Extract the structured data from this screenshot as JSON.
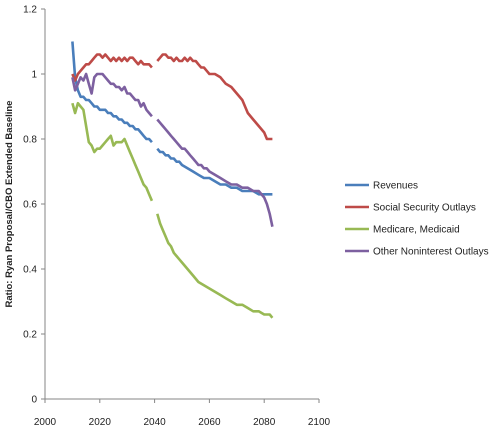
{
  "chart_data": {
    "type": "line",
    "title": "",
    "xlabel": "",
    "ylabel": "Ratio: Ryan Proposal/CBO Extended Baseline",
    "xlim": [
      2000,
      2100
    ],
    "ylim": [
      0,
      1.2
    ],
    "xticks": [
      2000,
      2020,
      2040,
      2060,
      2080,
      2100
    ],
    "yticks": [
      0,
      0.2,
      0.4,
      0.6,
      0.8,
      1,
      1.2
    ],
    "ytick_labels": [
      "0",
      "0.2",
      "0.4",
      "0.6",
      "0.8",
      "1",
      "1.2"
    ],
    "grid": false,
    "legend_position": "right",
    "series": [
      {
        "name": "Revenues",
        "color": "#4a7ebb",
        "segments": [
          [
            [
              2010,
              1.1
            ],
            [
              2011,
              0.99
            ],
            [
              2012,
              0.95
            ],
            [
              2013,
              0.93
            ],
            [
              2014,
              0.93
            ],
            [
              2015,
              0.92
            ],
            [
              2016,
              0.92
            ],
            [
              2017,
              0.91
            ],
            [
              2018,
              0.9
            ],
            [
              2019,
              0.9
            ],
            [
              2020,
              0.89
            ],
            [
              2021,
              0.89
            ],
            [
              2022,
              0.89
            ],
            [
              2023,
              0.88
            ],
            [
              2024,
              0.88
            ],
            [
              2025,
              0.87
            ],
            [
              2026,
              0.87
            ],
            [
              2027,
              0.86
            ],
            [
              2028,
              0.86
            ],
            [
              2029,
              0.85
            ],
            [
              2030,
              0.85
            ],
            [
              2031,
              0.84
            ],
            [
              2032,
              0.84
            ],
            [
              2033,
              0.83
            ],
            [
              2034,
              0.83
            ],
            [
              2035,
              0.82
            ],
            [
              2036,
              0.81
            ],
            [
              2037,
              0.8
            ],
            [
              2038,
              0.8
            ],
            [
              2039,
              0.79
            ]
          ],
          [
            [
              2041,
              0.77
            ],
            [
              2042,
              0.76
            ],
            [
              2043,
              0.76
            ],
            [
              2044,
              0.75
            ],
            [
              2045,
              0.75
            ],
            [
              2046,
              0.74
            ],
            [
              2047,
              0.74
            ],
            [
              2048,
              0.73
            ],
            [
              2049,
              0.73
            ],
            [
              2050,
              0.72
            ],
            [
              2052,
              0.71
            ],
            [
              2054,
              0.7
            ],
            [
              2056,
              0.69
            ],
            [
              2058,
              0.68
            ],
            [
              2060,
              0.68
            ],
            [
              2062,
              0.67
            ],
            [
              2064,
              0.66
            ],
            [
              2066,
              0.66
            ],
            [
              2068,
              0.65
            ],
            [
              2070,
              0.65
            ],
            [
              2072,
              0.64
            ],
            [
              2074,
              0.64
            ],
            [
              2076,
              0.64
            ],
            [
              2078,
              0.63
            ],
            [
              2080,
              0.63
            ],
            [
              2082,
              0.63
            ],
            [
              2083,
              0.63
            ]
          ]
        ]
      },
      {
        "name": "Social Security Outlays",
        "color": "#be4b48",
        "segments": [
          [
            [
              2010,
              1.0
            ],
            [
              2011,
              0.98
            ],
            [
              2012,
              1.0
            ],
            [
              2013,
              1.01
            ],
            [
              2014,
              1.02
            ],
            [
              2015,
              1.03
            ],
            [
              2016,
              1.03
            ],
            [
              2017,
              1.04
            ],
            [
              2018,
              1.05
            ],
            [
              2019,
              1.06
            ],
            [
              2020,
              1.06
            ],
            [
              2021,
              1.05
            ],
            [
              2022,
              1.06
            ],
            [
              2023,
              1.05
            ],
            [
              2024,
              1.04
            ],
            [
              2025,
              1.05
            ],
            [
              2026,
              1.04
            ],
            [
              2027,
              1.05
            ],
            [
              2028,
              1.04
            ],
            [
              2029,
              1.05
            ],
            [
              2030,
              1.04
            ],
            [
              2031,
              1.05
            ],
            [
              2032,
              1.05
            ],
            [
              2033,
              1.04
            ],
            [
              2034,
              1.03
            ],
            [
              2035,
              1.04
            ],
            [
              2036,
              1.03
            ],
            [
              2037,
              1.03
            ],
            [
              2038,
              1.03
            ],
            [
              2039,
              1.02
            ]
          ],
          [
            [
              2041,
              1.04
            ],
            [
              2042,
              1.05
            ],
            [
              2043,
              1.06
            ],
            [
              2044,
              1.06
            ],
            [
              2045,
              1.05
            ],
            [
              2046,
              1.05
            ],
            [
              2047,
              1.04
            ],
            [
              2048,
              1.05
            ],
            [
              2049,
              1.04
            ],
            [
              2050,
              1.04
            ],
            [
              2051,
              1.05
            ],
            [
              2052,
              1.04
            ],
            [
              2053,
              1.05
            ],
            [
              2054,
              1.04
            ],
            [
              2055,
              1.04
            ],
            [
              2056,
              1.03
            ],
            [
              2057,
              1.02
            ],
            [
              2058,
              1.02
            ],
            [
              2059,
              1.01
            ],
            [
              2060,
              1.0
            ],
            [
              2062,
              1.0
            ],
            [
              2064,
              0.99
            ],
            [
              2066,
              0.97
            ],
            [
              2068,
              0.96
            ],
            [
              2070,
              0.94
            ],
            [
              2072,
              0.92
            ],
            [
              2074,
              0.88
            ],
            [
              2076,
              0.86
            ],
            [
              2078,
              0.84
            ],
            [
              2080,
              0.82
            ],
            [
              2081,
              0.8
            ],
            [
              2083,
              0.8
            ]
          ]
        ]
      },
      {
        "name": "Medicare, Medicaid",
        "color": "#98b954",
        "segments": [
          [
            [
              2010,
              0.91
            ],
            [
              2011,
              0.88
            ],
            [
              2012,
              0.91
            ],
            [
              2013,
              0.9
            ],
            [
              2014,
              0.89
            ],
            [
              2015,
              0.84
            ],
            [
              2016,
              0.79
            ],
            [
              2017,
              0.78
            ],
            [
              2018,
              0.76
            ],
            [
              2019,
              0.77
            ],
            [
              2020,
              0.77
            ],
            [
              2021,
              0.78
            ],
            [
              2022,
              0.79
            ],
            [
              2023,
              0.8
            ],
            [
              2024,
              0.81
            ],
            [
              2025,
              0.78
            ],
            [
              2026,
              0.79
            ],
            [
              2027,
              0.79
            ],
            [
              2028,
              0.79
            ],
            [
              2029,
              0.8
            ],
            [
              2030,
              0.78
            ],
            [
              2031,
              0.76
            ],
            [
              2032,
              0.74
            ],
            [
              2033,
              0.72
            ],
            [
              2034,
              0.7
            ],
            [
              2035,
              0.68
            ],
            [
              2036,
              0.66
            ],
            [
              2037,
              0.65
            ],
            [
              2038,
              0.63
            ],
            [
              2039,
              0.61
            ]
          ],
          [
            [
              2041,
              0.57
            ],
            [
              2042,
              0.54
            ],
            [
              2043,
              0.52
            ],
            [
              2044,
              0.5
            ],
            [
              2045,
              0.48
            ],
            [
              2046,
              0.47
            ],
            [
              2047,
              0.45
            ],
            [
              2048,
              0.44
            ],
            [
              2049,
              0.43
            ],
            [
              2050,
              0.42
            ],
            [
              2052,
              0.4
            ],
            [
              2054,
              0.38
            ],
            [
              2056,
              0.36
            ],
            [
              2058,
              0.35
            ],
            [
              2060,
              0.34
            ],
            [
              2062,
              0.33
            ],
            [
              2064,
              0.32
            ],
            [
              2066,
              0.31
            ],
            [
              2068,
              0.3
            ],
            [
              2070,
              0.29
            ],
            [
              2072,
              0.29
            ],
            [
              2074,
              0.28
            ],
            [
              2076,
              0.27
            ],
            [
              2078,
              0.27
            ],
            [
              2080,
              0.26
            ],
            [
              2082,
              0.26
            ],
            [
              2083,
              0.25
            ]
          ]
        ]
      },
      {
        "name": "Other Noninterest Outlays",
        "color": "#7d60a0",
        "segments": [
          [
            [
              2010,
              0.99
            ],
            [
              2011,
              0.95
            ],
            [
              2012,
              0.97
            ],
            [
              2013,
              0.99
            ],
            [
              2014,
              0.98
            ],
            [
              2015,
              1.0
            ],
            [
              2016,
              0.97
            ],
            [
              2017,
              0.94
            ],
            [
              2018,
              0.99
            ],
            [
              2019,
              1.0
            ],
            [
              2020,
              1.0
            ],
            [
              2021,
              1.0
            ],
            [
              2022,
              0.99
            ],
            [
              2023,
              0.98
            ],
            [
              2024,
              0.97
            ],
            [
              2025,
              0.97
            ],
            [
              2026,
              0.96
            ],
            [
              2027,
              0.96
            ],
            [
              2028,
              0.95
            ],
            [
              2029,
              0.96
            ],
            [
              2030,
              0.94
            ],
            [
              2031,
              0.94
            ],
            [
              2032,
              0.93
            ],
            [
              2033,
              0.92
            ],
            [
              2034,
              0.92
            ],
            [
              2035,
              0.9
            ],
            [
              2036,
              0.91
            ],
            [
              2037,
              0.89
            ],
            [
              2038,
              0.88
            ],
            [
              2039,
              0.87
            ]
          ],
          [
            [
              2041,
              0.86
            ],
            [
              2042,
              0.85
            ],
            [
              2043,
              0.84
            ],
            [
              2044,
              0.83
            ],
            [
              2045,
              0.82
            ],
            [
              2046,
              0.81
            ],
            [
              2047,
              0.8
            ],
            [
              2048,
              0.79
            ],
            [
              2049,
              0.78
            ],
            [
              2050,
              0.77
            ],
            [
              2051,
              0.77
            ],
            [
              2052,
              0.76
            ],
            [
              2053,
              0.75
            ],
            [
              2054,
              0.74
            ],
            [
              2055,
              0.73
            ],
            [
              2056,
              0.72
            ],
            [
              2057,
              0.72
            ],
            [
              2058,
              0.71
            ],
            [
              2059,
              0.71
            ],
            [
              2060,
              0.7
            ],
            [
              2062,
              0.69
            ],
            [
              2064,
              0.68
            ],
            [
              2066,
              0.67
            ],
            [
              2068,
              0.66
            ],
            [
              2070,
              0.66
            ],
            [
              2072,
              0.65
            ],
            [
              2074,
              0.65
            ],
            [
              2076,
              0.64
            ],
            [
              2078,
              0.64
            ],
            [
              2080,
              0.62
            ],
            [
              2081,
              0.6
            ],
            [
              2082,
              0.57
            ],
            [
              2083,
              0.53
            ]
          ]
        ]
      }
    ]
  }
}
